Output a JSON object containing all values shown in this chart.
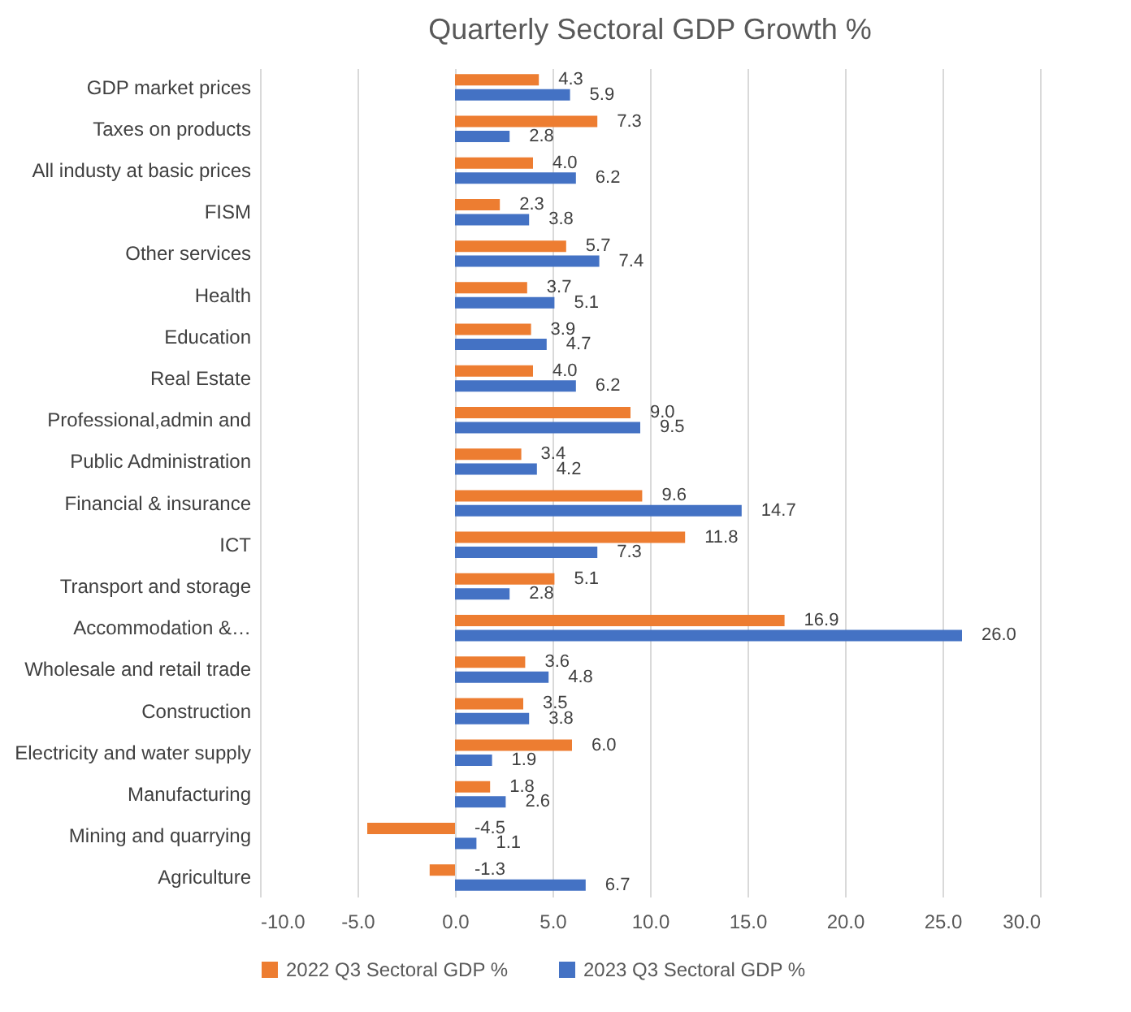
{
  "chart_data": {
    "type": "bar",
    "orientation": "horizontal",
    "title": "Quarterly Sectoral GDP Growth %",
    "categories": [
      "GDP  market prices",
      "Taxes on products",
      "All industy at basic prices",
      "FISM",
      "Other services",
      "Health",
      "Education",
      "Real Estate",
      "Professional,admin and ",
      "Public Administration",
      "Financial & insurance",
      "ICT",
      "Transport and storage",
      "Accommodation &…",
      "Wholesale and retail trade",
      "Construction",
      "Electricity and water supply",
      "Manufacturing",
      "Mining and quarrying",
      "Agriculture"
    ],
    "series": [
      {
        "name": "2022 Q3 Sectoral GDP %",
        "color": "#ed7d31",
        "values": [
          4.3,
          7.3,
          4.0,
          2.3,
          5.7,
          3.7,
          3.9,
          4.0,
          9.0,
          3.4,
          9.6,
          11.8,
          5.1,
          16.9,
          3.6,
          3.5,
          6.0,
          1.8,
          -4.5,
          -1.3
        ],
        "value_labels": [
          "4.3",
          "7.3",
          "4.0",
          "2.3",
          "5.7",
          "3.7",
          "3.9",
          "4.0",
          "9.0",
          "3.4",
          "9.6",
          "11.8",
          "5.1",
          "16.9",
          "3.6",
          "3.5",
          "6.0",
          "1.8",
          "-4.5",
          "-1.3"
        ]
      },
      {
        "name": "2023 Q3 Sectoral GDP %",
        "color": "#4472c4",
        "values": [
          5.9,
          2.8,
          6.2,
          3.8,
          7.4,
          5.1,
          4.7,
          6.2,
          9.5,
          4.2,
          14.7,
          7.3,
          2.8,
          26.0,
          4.8,
          3.8,
          1.9,
          2.6,
          1.1,
          6.7
        ],
        "value_labels": [
          "5.9",
          "2.8",
          "6.2",
          "3.8",
          "7.4",
          "5.1",
          "4.7",
          "6.2",
          "9.5",
          "4.2",
          "14.7",
          "7.3",
          "2.8",
          "26.0",
          "4.8",
          "3.8",
          "1.9",
          "2.6",
          "1.1",
          "6.7"
        ]
      }
    ],
    "xlim": [
      -10,
      30
    ],
    "xticks": [
      {
        "value": -10,
        "label": "-10.0"
      },
      {
        "value": -5,
        "label": "-5.0"
      },
      {
        "value": 0,
        "label": "0.0"
      },
      {
        "value": 5,
        "label": "5.0"
      },
      {
        "value": 10,
        "label": "10.0"
      },
      {
        "value": 15,
        "label": "15.0"
      },
      {
        "value": 20,
        "label": "20.0"
      },
      {
        "value": 25,
        "label": "25.0"
      },
      {
        "value": 30,
        "label": "30.0"
      }
    ],
    "grid": "x",
    "legend": "bottom"
  }
}
